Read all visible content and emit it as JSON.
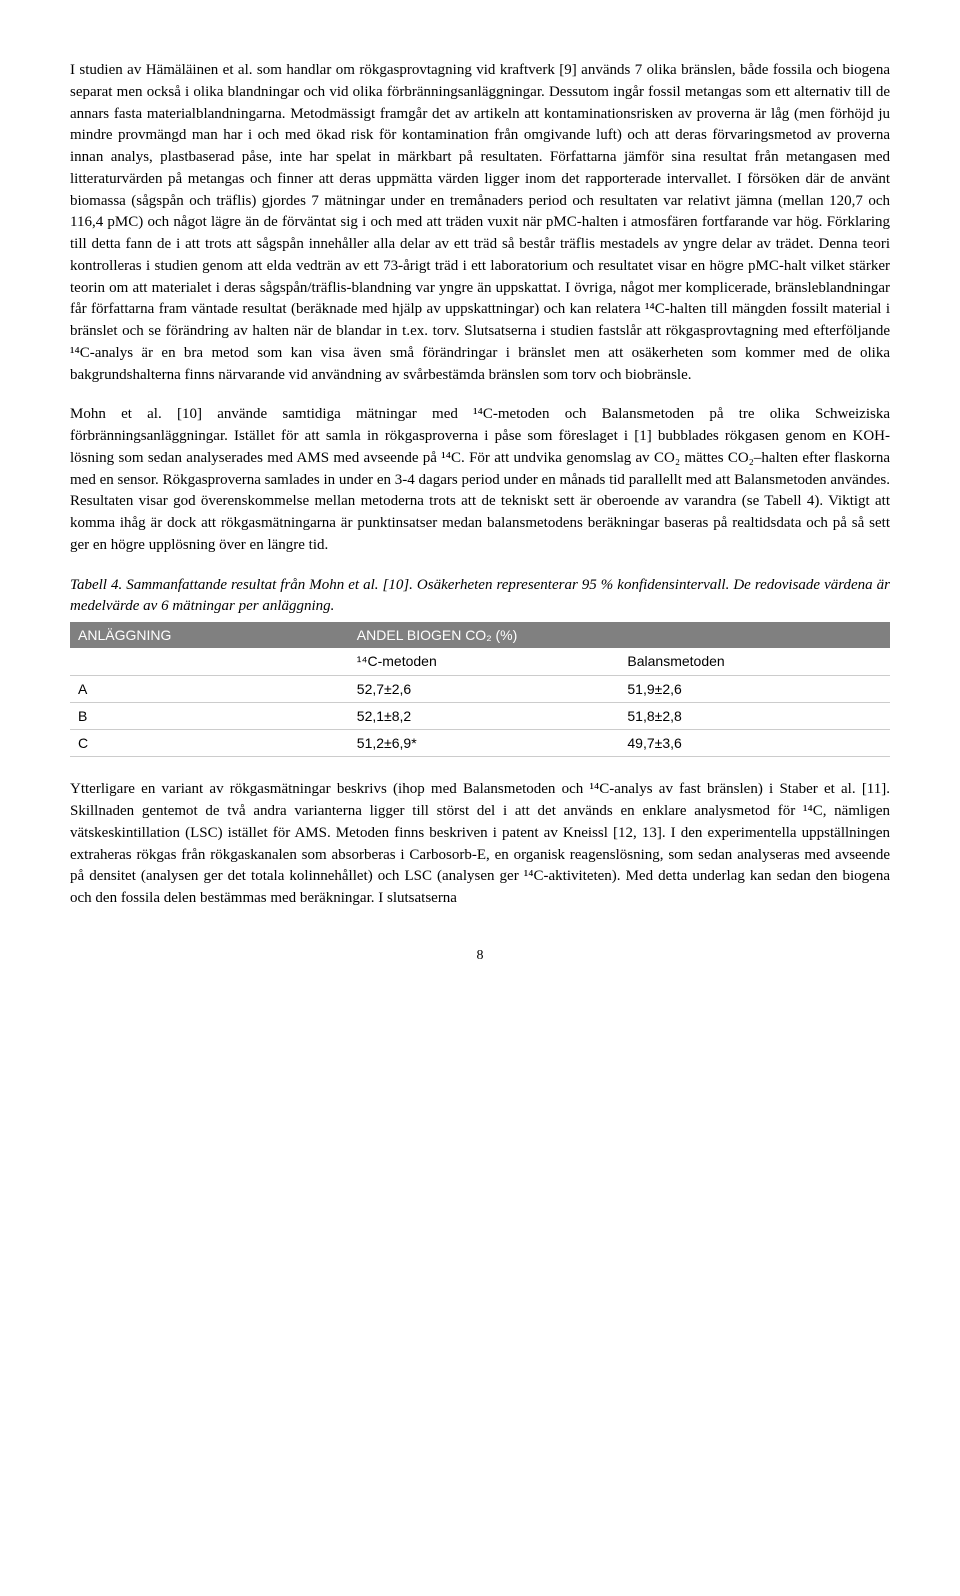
{
  "paragraphs": {
    "p1": "I studien av Hämäläinen et al. som handlar om rökgasprovtagning vid kraftverk [9] används 7 olika bränslen, både fossila och biogena separat men också i olika blandningar och vid olika förbränningsanläggningar. Dessutom ingår fossil metangas som ett alternativ till de annars fasta materialblandningarna. Metodmässigt framgår det av artikeln att kontaminationsrisken av proverna är låg (men förhöjd ju mindre provmängd man har i och med ökad risk för kontamination från omgivande luft) och att deras förvaringsmetod av proverna innan analys, plastbaserad påse, inte har spelat in märkbart på resultaten. Författarna jämför sina resultat från metangasen med litteraturvärden på metangas och finner att deras uppmätta värden ligger inom det rapporterade intervallet. I försöken där de använt biomassa (sågspån och träflis) gjordes 7 mätningar under en tremånaders period och resultaten var relativt jämna (mellan 120,7 och 116,4 pMC) och något lägre än de förväntat sig i och med att träden vuxit när pMC-halten i atmosfären fortfarande var hög. Förklaring till detta fann de i att trots att sågspån innehåller alla delar av ett träd så består träflis mestadels av yngre delar av trädet. Denna teori kontrolleras i studien genom att elda vedträn av ett 73-årigt träd i ett laboratorium och resultatet visar en högre pMC-halt vilket stärker teorin om att materialet i deras sågspån/träflis-blandning var yngre än uppskattat. I övriga, något mer komplicerade, bränsleblandningar får författarna fram väntade resultat (beräknade med hjälp av uppskattningar) och kan relatera ¹⁴C-halten till mängden fossilt material i bränslet och se förändring av halten när de blandar in t.ex. torv. Slutsatserna i studien fastslår att rökgasprovtagning med efterföljande ¹⁴C-analys är en bra metod som kan visa även små förändringar i bränslet men att osäkerheten som kommer med de olika bakgrundshalterna finns närvarande vid användning av svårbestämda bränslen som torv och biobränsle.",
    "p2": "Mohn et al. [10] använde samtidiga mätningar med ¹⁴C-metoden och Balansmetoden på tre olika Schweiziska förbränningsanläggningar. Istället för att samla in rökgasproverna i påse som föreslaget i [1] bubblades rökgasen genom en KOH-lösning som sedan analyserades med AMS med avseende på ¹⁴C. För att undvika genomslag av CO₂ mättes CO₂–halten efter flaskorna med en sensor. Rökgasproverna samlades in under en 3-4 dagars period under en månads tid parallellt med att Balansmetoden användes. Resultaten visar god överenskommelse mellan metoderna trots att de tekniskt sett är oberoende av varandra (se Tabell 4). Viktigt att komma ihåg är dock att rökgasmätningarna är punktinsatser medan balansmetodens beräkningar baseras på realtidsdata och på så sett ger en högre upplösning över en längre tid.",
    "p3": "Ytterligare en variant av rökgasmätningar beskrivs (ihop med Balansmetoden och ¹⁴C-analys av fast bränslen) i Staber et al. [11]. Skillnaden gentemot de två andra varianterna ligger till störst del i att det används en enklare analysmetod för ¹⁴C, nämligen vätskeskintillation (LSC) istället för AMS. Metoden finns beskriven i patent av Kneissl [12, 13]. I den experimentella uppställningen extraheras rökgas från rökgaskanalen som absorberas i Carbosorb-E, en organisk reagenslösning, som sedan analyseras med avseende på densitet (analysen ger det totala kolinnehållet) och LSC (analysen ger ¹⁴C-aktiviteten). Med detta underlag kan sedan den biogena och den fossila delen bestämmas med beräkningar. I slutsatserna"
  },
  "table": {
    "caption": "Tabell 4. Sammanfattande resultat från Mohn et al. [10]. Osäkerheten representerar 95 % konfidensintervall. De redovisade värdena är medelvärde av 6 mätningar per anläggning.",
    "header_left": "ANLÄGGNING",
    "header_right": "ANDEL BIOGEN CO₂ (%)",
    "sub_c14": "¹⁴C-metoden",
    "sub_bal": "Balansmetoden",
    "rows": [
      {
        "plant": "A",
        "c14": "52,7±2,6",
        "bal": "51,9±2,6"
      },
      {
        "plant": "B",
        "c14": "52,1±8,2",
        "bal": "51,8±2,8"
      },
      {
        "plant": "C",
        "c14": "51,2±6,9*",
        "bal": "49,7±3,6"
      }
    ],
    "header_bg": "#808080",
    "header_text_color": "#ffffff",
    "border_color": "#cccccc"
  },
  "page_number": "8"
}
